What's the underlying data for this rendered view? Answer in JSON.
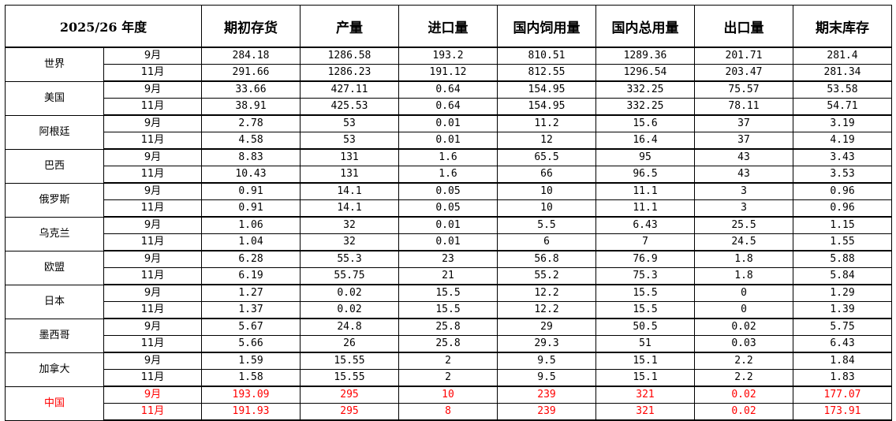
{
  "header": {
    "year": "2025/26 年度",
    "columns": [
      "期初存货",
      "产量",
      "进口量",
      "国内饲用量",
      "国内总用量",
      "出口量",
      "期末库存"
    ]
  },
  "highlight_color": "#ff0000",
  "rows": [
    {
      "country": "世界",
      "highlight": false,
      "months": [
        {
          "month": "9月",
          "values": [
            "284.18",
            "1286.58",
            "193.2",
            "810.51",
            "1289.36",
            "201.71",
            "281.4"
          ]
        },
        {
          "month": "11月",
          "values": [
            "291.66",
            "1286.23",
            "191.12",
            "812.55",
            "1296.54",
            "203.47",
            "281.34"
          ]
        }
      ]
    },
    {
      "country": "美国",
      "highlight": false,
      "months": [
        {
          "month": "9月",
          "values": [
            "33.66",
            "427.11",
            "0.64",
            "154.95",
            "332.25",
            "75.57",
            "53.58"
          ]
        },
        {
          "month": "11月",
          "values": [
            "38.91",
            "425.53",
            "0.64",
            "154.95",
            "332.25",
            "78.11",
            "54.71"
          ]
        }
      ]
    },
    {
      "country": "阿根廷",
      "highlight": false,
      "months": [
        {
          "month": "9月",
          "values": [
            "2.78",
            "53",
            "0.01",
            "11.2",
            "15.6",
            "37",
            "3.19"
          ]
        },
        {
          "month": "11月",
          "values": [
            "4.58",
            "53",
            "0.01",
            "12",
            "16.4",
            "37",
            "4.19"
          ]
        }
      ]
    },
    {
      "country": "巴西",
      "highlight": false,
      "months": [
        {
          "month": "9月",
          "values": [
            "8.83",
            "131",
            "1.6",
            "65.5",
            "95",
            "43",
            "3.43"
          ]
        },
        {
          "month": "11月",
          "values": [
            "10.43",
            "131",
            "1.6",
            "66",
            "96.5",
            "43",
            "3.53"
          ]
        }
      ]
    },
    {
      "country": "俄罗斯",
      "highlight": false,
      "months": [
        {
          "month": "9月",
          "values": [
            "0.91",
            "14.1",
            "0.05",
            "10",
            "11.1",
            "3",
            "0.96"
          ]
        },
        {
          "month": "11月",
          "values": [
            "0.91",
            "14.1",
            "0.05",
            "10",
            "11.1",
            "3",
            "0.96"
          ]
        }
      ]
    },
    {
      "country": "乌克兰",
      "highlight": false,
      "months": [
        {
          "month": "9月",
          "values": [
            "1.06",
            "32",
            "0.01",
            "5.5",
            "6.43",
            "25.5",
            "1.15"
          ]
        },
        {
          "month": "11月",
          "values": [
            "1.04",
            "32",
            "0.01",
            "6",
            "7",
            "24.5",
            "1.55"
          ]
        }
      ]
    },
    {
      "country": "欧盟",
      "highlight": false,
      "months": [
        {
          "month": "9月",
          "values": [
            "6.28",
            "55.3",
            "23",
            "56.8",
            "76.9",
            "1.8",
            "5.88"
          ]
        },
        {
          "month": "11月",
          "values": [
            "6.19",
            "55.75",
            "21",
            "55.2",
            "75.3",
            "1.8",
            "5.84"
          ]
        }
      ]
    },
    {
      "country": "日本",
      "highlight": false,
      "months": [
        {
          "month": "9月",
          "values": [
            "1.27",
            "0.02",
            "15.5",
            "12.2",
            "15.5",
            "0",
            "1.29"
          ]
        },
        {
          "month": "11月",
          "values": [
            "1.37",
            "0.02",
            "15.5",
            "12.2",
            "15.5",
            "0",
            "1.39"
          ]
        }
      ]
    },
    {
      "country": "墨西哥",
      "highlight": false,
      "months": [
        {
          "month": "9月",
          "values": [
            "5.67",
            "24.8",
            "25.8",
            "29",
            "50.5",
            "0.02",
            "5.75"
          ]
        },
        {
          "month": "11月",
          "values": [
            "5.66",
            "26",
            "25.8",
            "29.3",
            "51",
            "0.03",
            "6.43"
          ]
        }
      ]
    },
    {
      "country": "加拿大",
      "highlight": false,
      "months": [
        {
          "month": "9月",
          "values": [
            "1.59",
            "15.55",
            "2",
            "9.5",
            "15.1",
            "2.2",
            "1.84"
          ]
        },
        {
          "month": "11月",
          "values": [
            "1.58",
            "15.55",
            "2",
            "9.5",
            "15.1",
            "2.2",
            "1.83"
          ]
        }
      ]
    },
    {
      "country": "中国",
      "highlight": true,
      "months": [
        {
          "month": "9月",
          "values": [
            "193.09",
            "295",
            "10",
            "239",
            "321",
            "0.02",
            "177.07"
          ]
        },
        {
          "month": "11月",
          "values": [
            "191.93",
            "295",
            "8",
            "239",
            "321",
            "0.02",
            "173.91"
          ]
        }
      ]
    }
  ]
}
